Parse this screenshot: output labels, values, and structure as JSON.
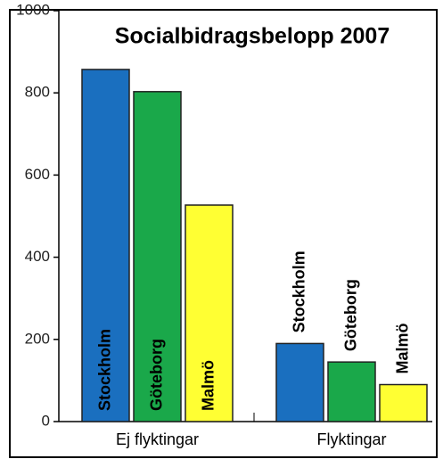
{
  "chart_data": {
    "type": "bar",
    "title": "Socialbidragsbelopp 2007",
    "categories": [
      "Ej flyktingar",
      "Flyktingar"
    ],
    "series": [
      {
        "name": "Stockholm",
        "color": "#1a6fbf",
        "values": [
          857,
          190
        ]
      },
      {
        "name": "Göteborg",
        "color": "#1aa84a",
        "values": [
          803,
          145
        ]
      },
      {
        "name": "Malmö",
        "color": "#ffff33",
        "values": [
          527,
          90
        ]
      }
    ],
    "ylim": [
      0,
      1000
    ],
    "yticks": [
      0,
      200,
      400,
      600,
      800,
      1000
    ]
  }
}
